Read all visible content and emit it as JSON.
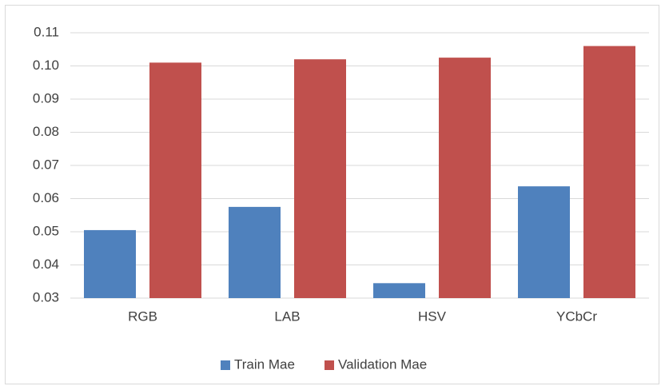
{
  "chart_data": {
    "type": "bar",
    "categories": [
      "RGB",
      "LAB",
      "HSV",
      "YCbCr"
    ],
    "series": [
      {
        "name": "Train Mae",
        "color": "#4f81bd",
        "values": [
          0.0505,
          0.0575,
          0.0345,
          0.0637
        ]
      },
      {
        "name": "Validation Mae",
        "color": "#c0504d",
        "values": [
          0.101,
          0.102,
          0.1025,
          0.106
        ]
      }
    ],
    "ylim": [
      0.03,
      0.11
    ],
    "yticks": [
      0.03,
      0.04,
      0.05,
      0.06,
      0.07,
      0.08,
      0.09,
      {
        "value": 0.1,
        "label": "0.10"
      },
      0.11
    ],
    "grid": true,
    "legend": "bottom"
  }
}
